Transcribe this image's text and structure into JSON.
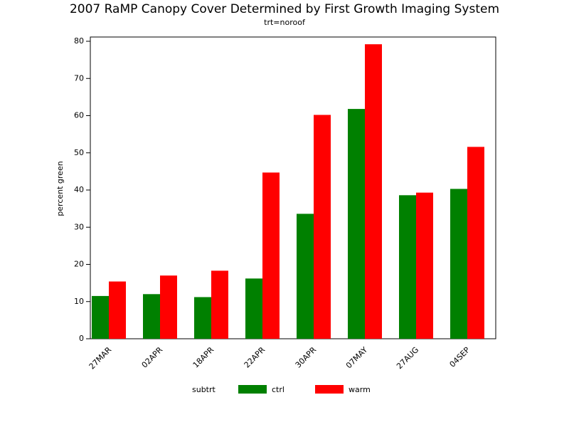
{
  "chart_data": {
    "type": "bar",
    "title": "2007 RaMP Canopy Cover Determined by First Growth Imaging System",
    "subtitle": "trt=noroof",
    "y_label": "percent green",
    "legend_title": "subtrt",
    "categories": [
      "27MAR",
      "02APR",
      "18APR",
      "22APR",
      "30APR",
      "07MAY",
      "27AUG",
      "04SEP"
    ],
    "series": [
      {
        "name": "ctrl",
        "color": "#008000",
        "values": [
          11.5,
          12.0,
          11.2,
          16.2,
          33.6,
          61.8,
          38.6,
          40.3
        ]
      },
      {
        "name": "warm",
        "color": "#ff0000",
        "values": [
          15.4,
          17.0,
          18.3,
          44.7,
          60.2,
          79.2,
          39.3,
          51.6
        ]
      }
    ],
    "ylim": [
      0,
      80
    ],
    "yticks": [
      0,
      10,
      20,
      30,
      40,
      50,
      60,
      70,
      80
    ]
  }
}
